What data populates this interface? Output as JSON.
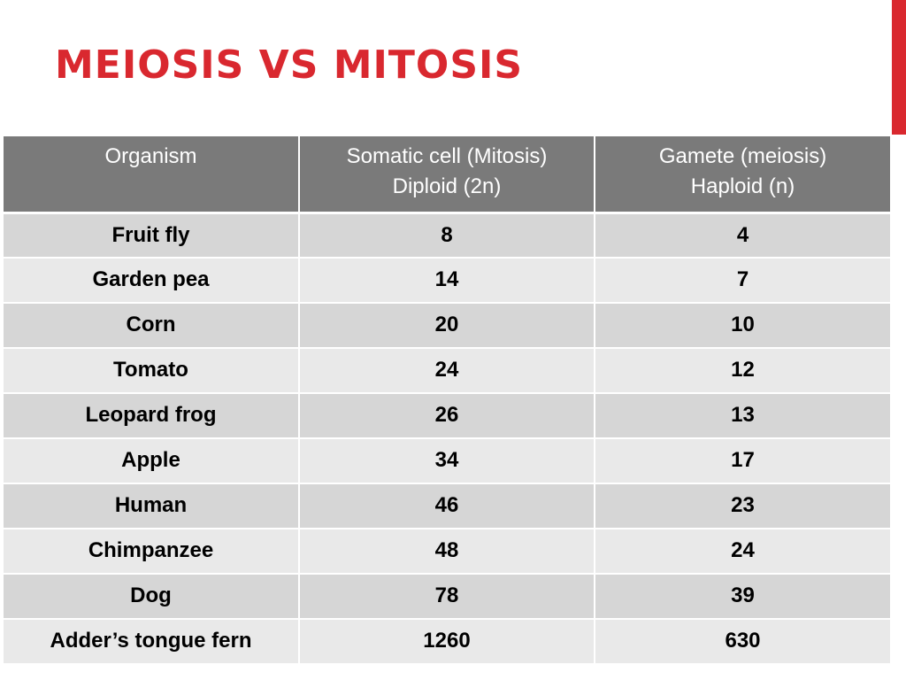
{
  "slide": {
    "title": "MEIOSIS VS MITOSIS",
    "accent_color": "#d9282f"
  },
  "table": {
    "headers": [
      [
        "Organism"
      ],
      [
        "Somatic cell (Mitosis)",
        "Diploid (2n)"
      ],
      [
        "Gamete (meiosis)",
        "Haploid (n)"
      ]
    ],
    "rows": [
      [
        "Fruit fly",
        "8",
        "4"
      ],
      [
        "Garden pea",
        "14",
        "7"
      ],
      [
        "Corn",
        "20",
        "10"
      ],
      [
        "Tomato",
        "24",
        "12"
      ],
      [
        "Leopard frog",
        "26",
        "13"
      ],
      [
        "Apple",
        "34",
        "17"
      ],
      [
        "Human",
        "46",
        "23"
      ],
      [
        "Chimpanzee",
        "48",
        "24"
      ],
      [
        "Dog",
        "78",
        "39"
      ],
      [
        "Adder’s tongue fern",
        "1260",
        "630"
      ]
    ]
  }
}
